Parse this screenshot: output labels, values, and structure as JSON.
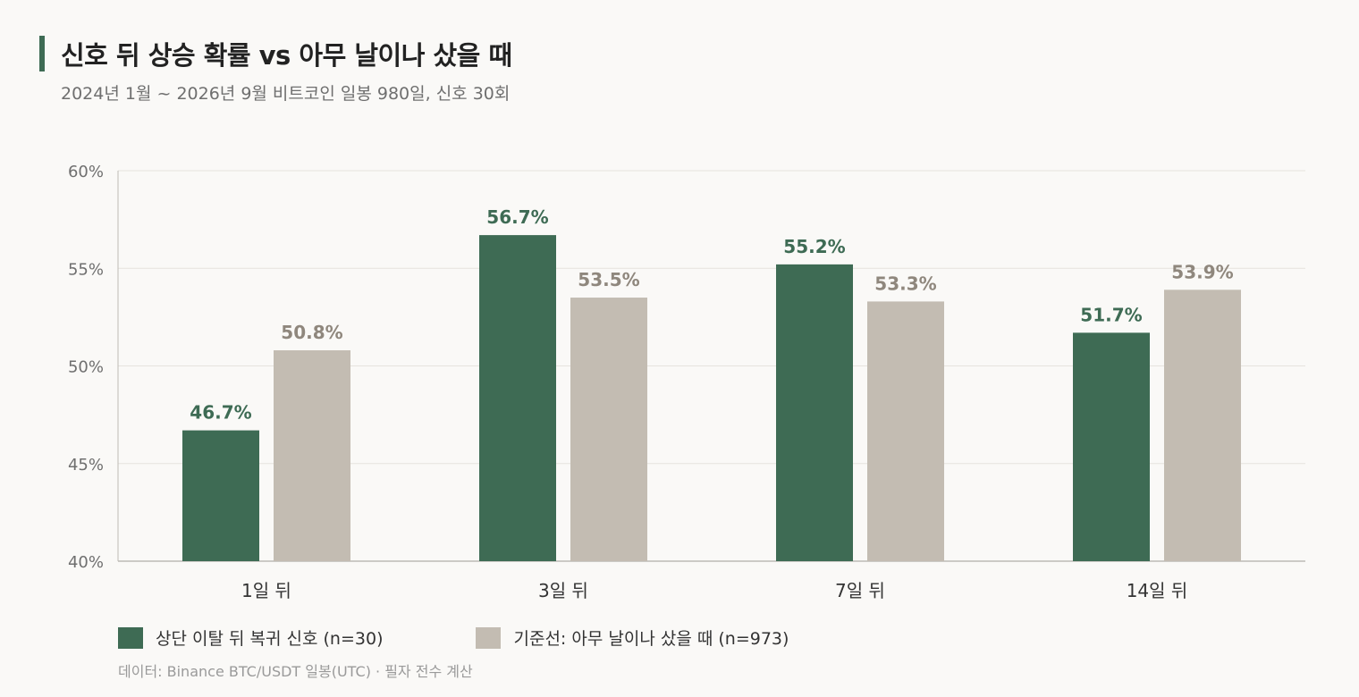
{
  "header": {
    "title": "신호 뒤 상승 확률 vs 아무 날이나 샀을 때",
    "subtitle": "2024년 1월 ~ 2026년 9월 비트코인 일봉 980일, 신호 30회"
  },
  "colors": {
    "signal": "#3e6b54",
    "baseline": "#c3bcb2",
    "signal_label": "#3e6b54",
    "baseline_label": "#8f877d",
    "grid": "#e6e3de",
    "axis": "#bdbab5"
  },
  "chart_data": {
    "type": "bar",
    "categories": [
      "1일 뒤",
      "3일 뒤",
      "7일 뒤",
      "14일 뒤"
    ],
    "series": [
      {
        "name": "상단 이탈 뒤 복귀 신호 (n=30)",
        "values": [
          46.7,
          56.7,
          55.2,
          51.7
        ],
        "labels": [
          "46.7%",
          "56.7%",
          "55.2%",
          "51.7%"
        ]
      },
      {
        "name": "기준선: 아무 날이나 샀을 때 (n=973)",
        "values": [
          50.8,
          53.5,
          53.3,
          53.9
        ],
        "labels": [
          "50.8%",
          "53.5%",
          "53.3%",
          "53.9%"
        ]
      }
    ],
    "ylim": [
      40,
      60
    ],
    "yticks": [
      40,
      45,
      50,
      55,
      60
    ],
    "ytick_labels": [
      "40%",
      "45%",
      "50%",
      "55%",
      "60%"
    ],
    "grid": true,
    "legend": "bottom-left"
  },
  "footnote": "데이터: Binance BTC/USDT 일봉(UTC) · 필자 전수 계산"
}
